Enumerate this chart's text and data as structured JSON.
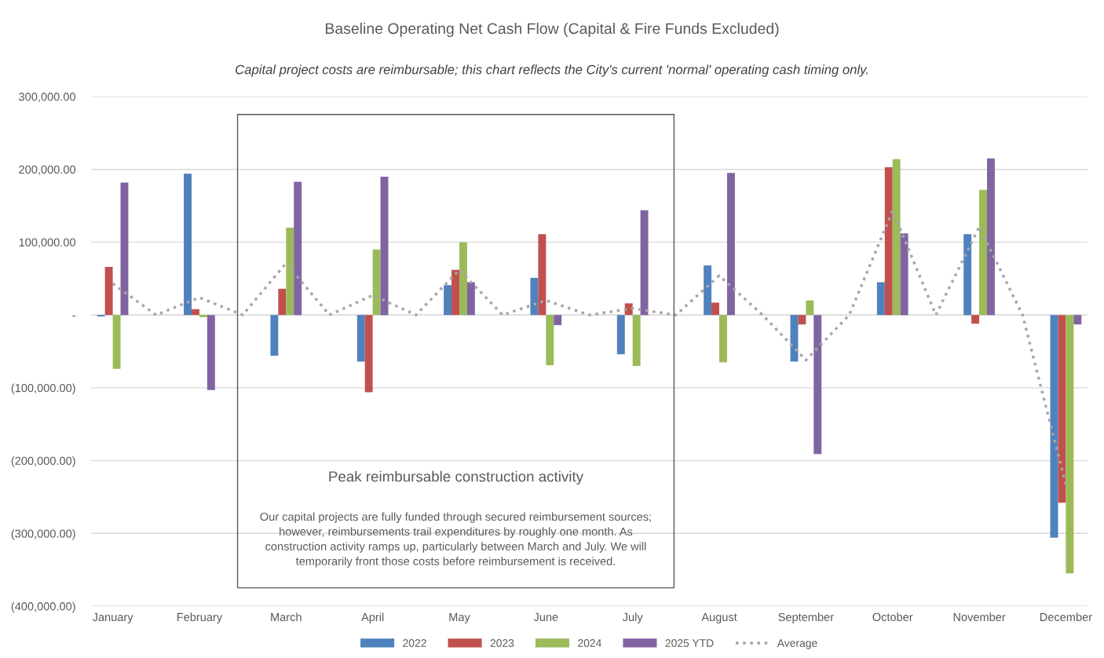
{
  "chart_data": {
    "type": "bar",
    "title": "Baseline Operating Net Cash Flow (Capital & Fire Funds Excluded)",
    "subtitle": "Capital project costs are reimbursable; this chart reflects the City's current 'normal' operating cash timing only.",
    "categories": [
      "January",
      null,
      "February",
      null,
      "March",
      null,
      "April",
      null,
      "May",
      null,
      "June",
      null,
      "July",
      null,
      "August",
      null,
      "September",
      null,
      "October",
      null,
      "November",
      null,
      "December"
    ],
    "series": [
      {
        "name": "2022",
        "color": "#4f81bd",
        "values": [
          -2000,
          null,
          194000,
          null,
          -56000,
          null,
          -64000,
          null,
          41000,
          null,
          51000,
          null,
          -54000,
          null,
          68000,
          null,
          -64000,
          null,
          45000,
          null,
          111000,
          null,
          -306000
        ]
      },
      {
        "name": "2023",
        "color": "#c0504d",
        "values": [
          66000,
          null,
          8000,
          null,
          36000,
          null,
          -106000,
          null,
          62000,
          null,
          111000,
          null,
          16000,
          null,
          17000,
          null,
          -13000,
          null,
          203000,
          null,
          -12000,
          null,
          -258000
        ]
      },
      {
        "name": "2024",
        "color": "#9bbb59",
        "values": [
          -74000,
          null,
          -3000,
          null,
          120000,
          null,
          90000,
          null,
          100000,
          null,
          -69000,
          null,
          -70000,
          null,
          -65000,
          null,
          20000,
          null,
          214000,
          null,
          172000,
          null,
          -355000
        ]
      },
      {
        "name": "2025 YTD",
        "color": "#8064a2",
        "values": [
          182000,
          null,
          -103000,
          null,
          183000,
          null,
          190000,
          null,
          45000,
          null,
          -14000,
          null,
          144000,
          null,
          195000,
          null,
          -191000,
          null,
          112000,
          null,
          215000,
          null,
          -13000
        ]
      },
      {
        "name": "Average",
        "type": "line",
        "color": "#a6a6a6",
        "line_style": "dotted",
        "values": [
          43000,
          0,
          24000,
          0,
          71000,
          0,
          27000,
          0,
          62000,
          0,
          20000,
          0,
          9000,
          0,
          54000,
          0,
          -62000,
          0,
          143000,
          0,
          121000,
          0,
          -233000
        ]
      }
    ],
    "ylim": [
      -400000,
      300000
    ],
    "yticks": [
      {
        "value": -400000,
        "label": "(400,000.00)"
      },
      {
        "value": -300000,
        "label": "(300,000.00)"
      },
      {
        "value": -200000,
        "label": "(200,000.00)"
      },
      {
        "value": -100000,
        "label": "(100,000.00)"
      },
      {
        "value": 0,
        "label": "-"
      },
      {
        "value": 100000,
        "label": "100,000.00"
      },
      {
        "value": 200000,
        "label": "200,000.00"
      },
      {
        "value": 300000,
        "label": "300,000.00"
      }
    ],
    "grid": "y",
    "legend": "bottom",
    "annotations": [
      "Peak reimbursable construction activity",
      "Our capital projects are fully funded through secured reimbursement sources;\nhowever, reimbursements trail expenditures by roughly one month. As\nconstruction activity ramps up, particularly between March and July. We will\ntemporarily front those costs before reimbursement is received."
    ]
  }
}
